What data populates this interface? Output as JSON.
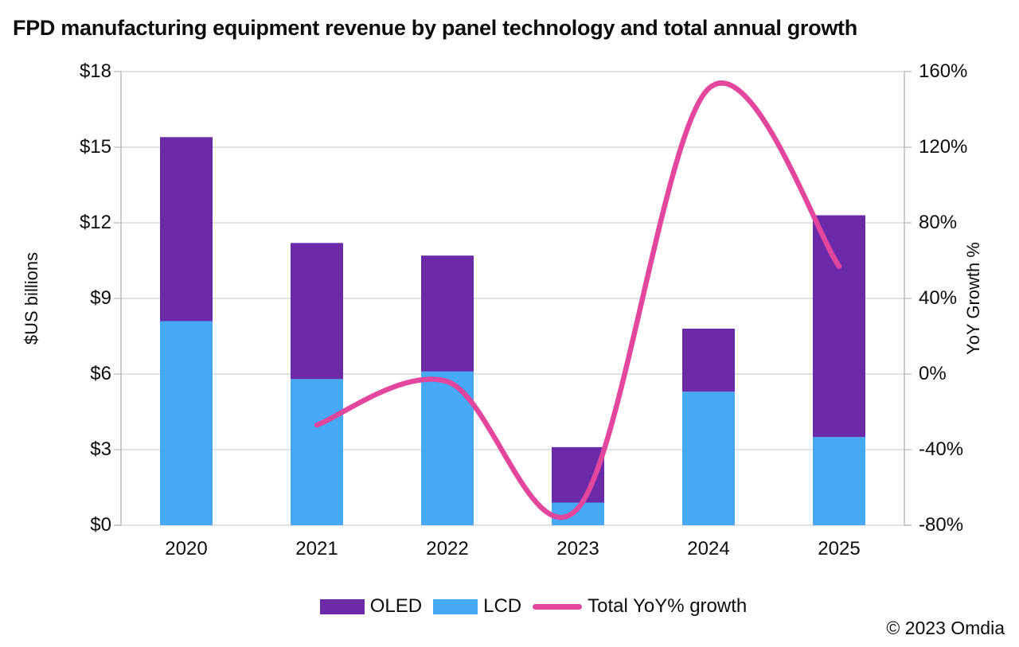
{
  "title": "FPD manufacturing equipment revenue by panel technology and total annual growth",
  "copyright": "© 2023 Omdia",
  "chart_data": {
    "type": "combo-stacked-bar-line",
    "categories": [
      "2020",
      "2021",
      "2022",
      "2023",
      "2024",
      "2025"
    ],
    "bar_series": [
      {
        "name": "LCD",
        "color": "#47A9F5",
        "values": [
          8.1,
          5.8,
          6.1,
          0.9,
          5.3,
          3.5
        ]
      },
      {
        "name": "OLED",
        "color": "#6B2BA8",
        "values": [
          7.3,
          5.4,
          4.6,
          2.2,
          2.5,
          8.8
        ]
      }
    ],
    "bar_totals": [
      15.4,
      11.2,
      10.7,
      3.1,
      7.8,
      12.3
    ],
    "line_series": {
      "name": "Total YoY% growth",
      "color": "#E2479D",
      "x": [
        "2021",
        "2022",
        "2023",
        "2024",
        "2025"
      ],
      "values": [
        -27,
        -4,
        -71,
        151,
        57
      ],
      "smoothed": true
    },
    "y_left": {
      "label": "$US billions",
      "min": 0,
      "max": 18,
      "step": 3,
      "ticks": [
        "$0",
        "$3",
        "$6",
        "$9",
        "$12",
        "$15",
        "$18"
      ]
    },
    "y_right": {
      "label": "YoY Growth %",
      "min": -80,
      "max": 160,
      "step": 40,
      "ticks": [
        "-80%",
        "-40%",
        "0%",
        "40%",
        "80%",
        "120%",
        "160%"
      ]
    },
    "legend": [
      {
        "label": "OLED",
        "swatch": "bar",
        "color": "#6B2BA8"
      },
      {
        "label": "LCD",
        "swatch": "bar",
        "color": "#47A9F5"
      },
      {
        "label": "Total YoY% growth",
        "swatch": "line",
        "color": "#E2479D"
      }
    ],
    "legend_position": "bottom",
    "grid": true,
    "gridline_color": "#D9D9D9",
    "axis_line_color": "#BFBFBF"
  }
}
